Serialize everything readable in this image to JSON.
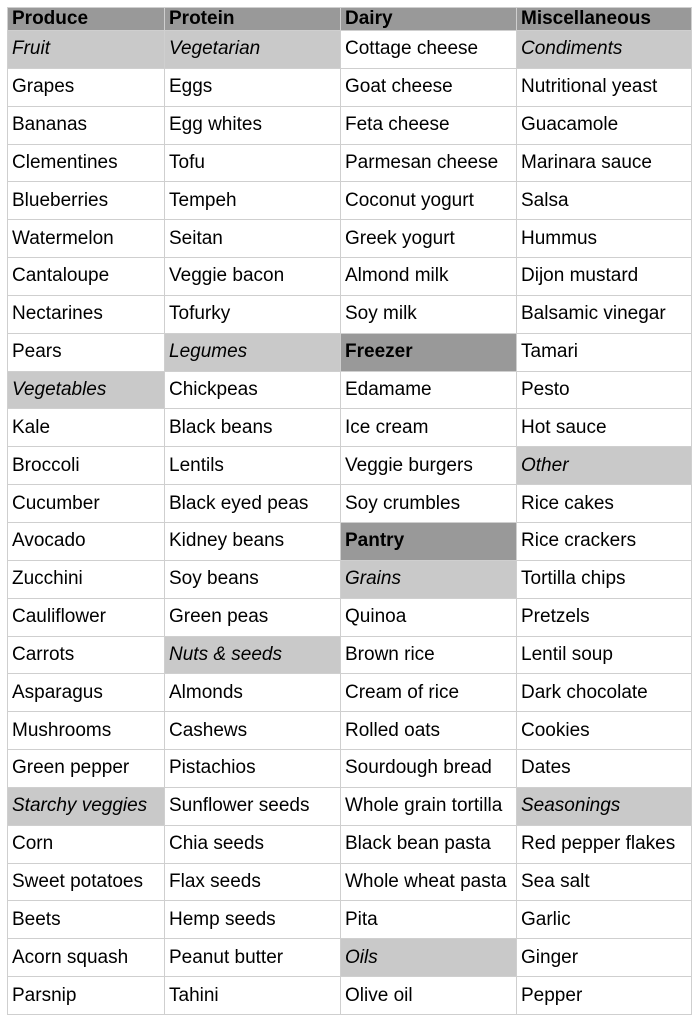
{
  "colors": {
    "page_bg": "#ffffff",
    "category_header_bg": "#999999",
    "subcategory_bg": "#c9c9c9",
    "item_cell_bg": "#ffffff",
    "grid_border": "#cfcfcf",
    "text": "#000000"
  },
  "table": {
    "columns": [
      "Produce",
      "Protein",
      "Dairy",
      "Miscellaneous"
    ],
    "rows": [
      [
        {
          "text": "Fruit",
          "style": "sub"
        },
        {
          "text": "Vegetarian",
          "style": "sub"
        },
        {
          "text": "Cottage cheese",
          "style": "item"
        },
        {
          "text": "Condiments",
          "style": "sub"
        }
      ],
      [
        {
          "text": "Grapes",
          "style": "item"
        },
        {
          "text": "Eggs",
          "style": "item"
        },
        {
          "text": "Goat cheese",
          "style": "item"
        },
        {
          "text": "Nutritional yeast",
          "style": "item"
        }
      ],
      [
        {
          "text": "Bananas",
          "style": "item"
        },
        {
          "text": "Egg whites",
          "style": "item"
        },
        {
          "text": "Feta cheese",
          "style": "item"
        },
        {
          "text": "Guacamole",
          "style": "item"
        }
      ],
      [
        {
          "text": "Clementines",
          "style": "item"
        },
        {
          "text": "Tofu",
          "style": "item"
        },
        {
          "text": "Parmesan cheese",
          "style": "item"
        },
        {
          "text": "Marinara sauce",
          "style": "item"
        }
      ],
      [
        {
          "text": "Blueberries",
          "style": "item"
        },
        {
          "text": "Tempeh",
          "style": "item"
        },
        {
          "text": "Coconut yogurt",
          "style": "item"
        },
        {
          "text": "Salsa",
          "style": "item"
        }
      ],
      [
        {
          "text": "Watermelon",
          "style": "item"
        },
        {
          "text": "Seitan",
          "style": "item"
        },
        {
          "text": "Greek yogurt",
          "style": "item"
        },
        {
          "text": "Hummus",
          "style": "item"
        }
      ],
      [
        {
          "text": "Cantaloupe",
          "style": "item"
        },
        {
          "text": "Veggie bacon",
          "style": "item"
        },
        {
          "text": "Almond milk",
          "style": "item"
        },
        {
          "text": "Dijon mustard",
          "style": "item"
        }
      ],
      [
        {
          "text": "Nectarines",
          "style": "item"
        },
        {
          "text": "Tofurky",
          "style": "item"
        },
        {
          "text": "Soy milk",
          "style": "item"
        },
        {
          "text": "Balsamic vinegar",
          "style": "item"
        }
      ],
      [
        {
          "text": "Pears",
          "style": "item"
        },
        {
          "text": "Legumes",
          "style": "sub"
        },
        {
          "text": "Freezer",
          "style": "head"
        },
        {
          "text": "Tamari",
          "style": "item"
        }
      ],
      [
        {
          "text": "Vegetables",
          "style": "sub"
        },
        {
          "text": "Chickpeas",
          "style": "item"
        },
        {
          "text": "Edamame",
          "style": "item"
        },
        {
          "text": "Pesto",
          "style": "item"
        }
      ],
      [
        {
          "text": "Kale",
          "style": "item"
        },
        {
          "text": "Black beans",
          "style": "item"
        },
        {
          "text": "Ice cream",
          "style": "item"
        },
        {
          "text": "Hot sauce",
          "style": "item"
        }
      ],
      [
        {
          "text": "Broccoli",
          "style": "item"
        },
        {
          "text": "Lentils",
          "style": "item"
        },
        {
          "text": "Veggie burgers",
          "style": "item"
        },
        {
          "text": "Other",
          "style": "sub"
        }
      ],
      [
        {
          "text": "Cucumber",
          "style": "item"
        },
        {
          "text": "Black eyed peas",
          "style": "item"
        },
        {
          "text": "Soy crumbles",
          "style": "item"
        },
        {
          "text": "Rice cakes",
          "style": "item"
        }
      ],
      [
        {
          "text": "Avocado",
          "style": "item"
        },
        {
          "text": "Kidney beans",
          "style": "item"
        },
        {
          "text": "Pantry",
          "style": "head"
        },
        {
          "text": "Rice crackers",
          "style": "item"
        }
      ],
      [
        {
          "text": "Zucchini",
          "style": "item"
        },
        {
          "text": "Soy beans",
          "style": "item"
        },
        {
          "text": "Grains",
          "style": "sub"
        },
        {
          "text": "Tortilla chips",
          "style": "item"
        }
      ],
      [
        {
          "text": "Cauliflower",
          "style": "item"
        },
        {
          "text": "Green peas",
          "style": "item"
        },
        {
          "text": "Quinoa",
          "style": "item"
        },
        {
          "text": "Pretzels",
          "style": "item"
        }
      ],
      [
        {
          "text": "Carrots",
          "style": "item"
        },
        {
          "text": "Nuts & seeds",
          "style": "sub"
        },
        {
          "text": "Brown rice",
          "style": "item"
        },
        {
          "text": "Lentil soup",
          "style": "item"
        }
      ],
      [
        {
          "text": "Asparagus",
          "style": "item"
        },
        {
          "text": "Almonds",
          "style": "item"
        },
        {
          "text": "Cream of rice",
          "style": "item"
        },
        {
          "text": "Dark chocolate",
          "style": "item"
        }
      ],
      [
        {
          "text": "Mushrooms",
          "style": "item"
        },
        {
          "text": "Cashews",
          "style": "item"
        },
        {
          "text": "Rolled oats",
          "style": "item"
        },
        {
          "text": "Cookies",
          "style": "item"
        }
      ],
      [
        {
          "text": "Green pepper",
          "style": "item"
        },
        {
          "text": "Pistachios",
          "style": "item"
        },
        {
          "text": "Sourdough bread",
          "style": "item"
        },
        {
          "text": "Dates",
          "style": "item"
        }
      ],
      [
        {
          "text": "Starchy veggies",
          "style": "sub"
        },
        {
          "text": "Sunflower seeds",
          "style": "item"
        },
        {
          "text": "Whole grain tortilla",
          "style": "item"
        },
        {
          "text": "Seasonings",
          "style": "sub"
        }
      ],
      [
        {
          "text": "Corn",
          "style": "item"
        },
        {
          "text": "Chia seeds",
          "style": "item"
        },
        {
          "text": "Black bean pasta",
          "style": "item"
        },
        {
          "text": "Red pepper flakes",
          "style": "item"
        }
      ],
      [
        {
          "text": "Sweet potatoes",
          "style": "item"
        },
        {
          "text": "Flax seeds",
          "style": "item"
        },
        {
          "text": "Whole wheat pasta",
          "style": "item"
        },
        {
          "text": "Sea salt",
          "style": "item"
        }
      ],
      [
        {
          "text": "Beets",
          "style": "item"
        },
        {
          "text": "Hemp seeds",
          "style": "item"
        },
        {
          "text": "Pita",
          "style": "item"
        },
        {
          "text": "Garlic",
          "style": "item"
        }
      ],
      [
        {
          "text": "Acorn squash",
          "style": "item"
        },
        {
          "text": "Peanut butter",
          "style": "item"
        },
        {
          "text": "Oils",
          "style": "sub"
        },
        {
          "text": "Ginger",
          "style": "item"
        }
      ],
      [
        {
          "text": "Parsnip",
          "style": "item"
        },
        {
          "text": "Tahini",
          "style": "item"
        },
        {
          "text": "Olive oil",
          "style": "item"
        },
        {
          "text": "Pepper",
          "style": "item"
        }
      ]
    ]
  }
}
